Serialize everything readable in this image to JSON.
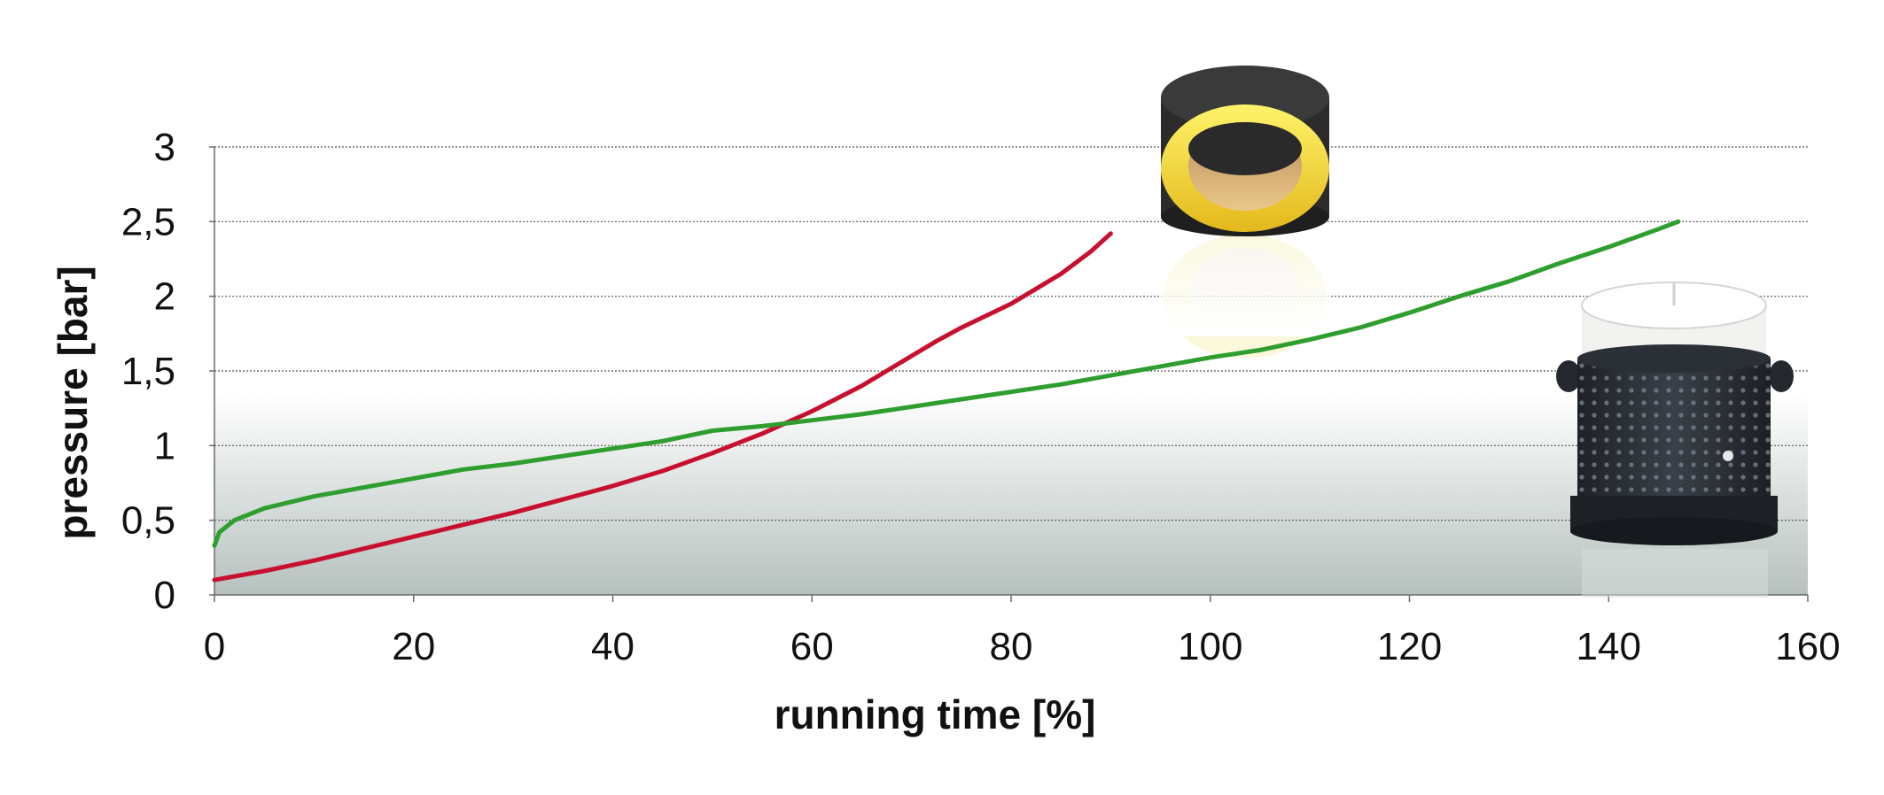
{
  "chart_data": {
    "type": "line",
    "title": "",
    "xlabel": "running time  [%]",
    "ylabel": "pressure [bar]",
    "xlim": [
      0,
      160
    ],
    "ylim": [
      0,
      3
    ],
    "grid": true,
    "x_ticks": [
      {
        "value": 0,
        "label": "0"
      },
      {
        "value": 20,
        "label": "20"
      },
      {
        "value": 40,
        "label": "40"
      },
      {
        "value": 60,
        "label": "60"
      },
      {
        "value": 80,
        "label": "80"
      },
      {
        "value": 100,
        "label": "100"
      },
      {
        "value": 120,
        "label": "120"
      },
      {
        "value": 140,
        "label": "140"
      },
      {
        "value": 160,
        "label": "160"
      }
    ],
    "y_ticks": [
      {
        "value": 0,
        "label": "0"
      },
      {
        "value": 0.5,
        "label": "0,5"
      },
      {
        "value": 1,
        "label": "1"
      },
      {
        "value": 1.5,
        "label": "1,5"
      },
      {
        "value": 2,
        "label": "2"
      },
      {
        "value": 2.5,
        "label": "2,5"
      },
      {
        "value": 3,
        "label": "3"
      }
    ],
    "series": [
      {
        "color": "#c8102e",
        "points": [
          [
            0,
            0.1
          ],
          [
            5,
            0.16
          ],
          [
            10,
            0.23
          ],
          [
            15,
            0.31
          ],
          [
            20,
            0.39
          ],
          [
            25,
            0.47
          ],
          [
            30,
            0.55
          ],
          [
            35,
            0.64
          ],
          [
            40,
            0.73
          ],
          [
            45,
            0.83
          ],
          [
            50,
            0.95
          ],
          [
            55,
            1.08
          ],
          [
            60,
            1.23
          ],
          [
            65,
            1.4
          ],
          [
            70,
            1.6
          ],
          [
            72.5,
            1.7
          ],
          [
            75,
            1.79
          ],
          [
            80,
            1.95
          ],
          [
            85,
            2.15
          ],
          [
            88,
            2.3
          ],
          [
            90,
            2.42
          ]
        ]
      },
      {
        "color": "#2e9e2e",
        "points": [
          [
            0,
            0.33
          ],
          [
            0.5,
            0.42
          ],
          [
            2,
            0.5
          ],
          [
            5,
            0.58
          ],
          [
            10,
            0.66
          ],
          [
            15,
            0.72
          ],
          [
            20,
            0.78
          ],
          [
            25,
            0.84
          ],
          [
            30,
            0.88
          ],
          [
            35,
            0.93
          ],
          [
            40,
            0.98
          ],
          [
            45,
            1.03
          ],
          [
            50,
            1.1
          ],
          [
            55,
            1.13
          ],
          [
            60,
            1.17
          ],
          [
            65,
            1.21
          ],
          [
            70,
            1.26
          ],
          [
            75,
            1.31
          ],
          [
            80,
            1.36
          ],
          [
            85,
            1.41
          ],
          [
            90,
            1.47
          ],
          [
            95,
            1.53
          ],
          [
            100,
            1.59
          ],
          [
            105,
            1.64
          ],
          [
            110,
            1.71
          ],
          [
            115,
            1.79
          ],
          [
            120,
            1.89
          ],
          [
            125,
            2.0
          ],
          [
            130,
            2.1
          ],
          [
            135,
            2.22
          ],
          [
            140,
            2.33
          ],
          [
            145,
            2.45
          ],
          [
            147,
            2.5
          ]
        ]
      }
    ]
  },
  "colors": {
    "background_gradient_top": "#ffffff",
    "background_gradient_bottom": "#b9c4c1",
    "gridline": "#555555"
  },
  "images": [
    {
      "name": "round-filter-cartridge",
      "description_icon": "yellow-ring-filter-icon"
    },
    {
      "name": "pot-filter-cartridge",
      "description_icon": "perforated-black-canister-icon"
    }
  ]
}
